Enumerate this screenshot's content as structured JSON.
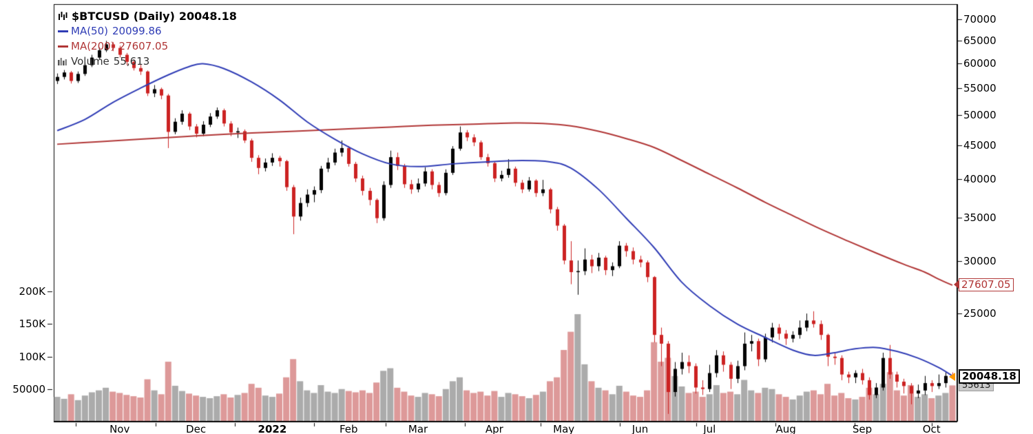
{
  "legend": {
    "symbol": "$BTCUSD",
    "timeframe": "(Daily)",
    "last": "20048.18",
    "ma50_label": "MA(50)",
    "ma50_value": "20099.86",
    "ma200_label": "MA(200)",
    "ma200_value": "27607.05",
    "volume_label": "Volume",
    "volume_value": "55,613"
  },
  "markers": {
    "ma200": "27607.05",
    "last_price": "20048.18",
    "last_volume": "55613"
  },
  "chart_data": {
    "type": "candlestick",
    "title": "$BTCUSD (Daily)",
    "symbol": "$BTCUSD",
    "timeframe": "Daily",
    "last_price": 20048.18,
    "colors": {
      "ma50": "#2f3cb5",
      "ma200": "#b03535",
      "candle_up": "#000000",
      "candle_down": "#cc2222",
      "volume_up": "#ababab",
      "volume_down": "#dd9999",
      "volume_marker_bg": "#cccccc",
      "last_arrow": "#ff9900",
      "axis": "#000000"
    },
    "price_axis": {
      "side": "right",
      "scale": "log",
      "ticks": [
        70000,
        65000,
        60000,
        55000,
        50000,
        45000,
        40000,
        35000,
        30000,
        25000
      ]
    },
    "volume_axis": {
      "side": "left",
      "ticks": [
        {
          "label": "200K",
          "value": 200000
        },
        {
          "label": "150K",
          "value": 150000
        },
        {
          "label": "100K",
          "value": 100000
        },
        {
          "label": "50000",
          "value": 50000
        }
      ]
    },
    "x_axis": {
      "labels": [
        {
          "label": "Nov",
          "i": 9
        },
        {
          "label": "Dec",
          "i": 20
        },
        {
          "label": "2022",
          "i": 31,
          "bold": true
        },
        {
          "label": "Feb",
          "i": 42
        },
        {
          "label": "Mar",
          "i": 52
        },
        {
          "label": "Apr",
          "i": 63
        },
        {
          "label": "May",
          "i": 73
        },
        {
          "label": "Jun",
          "i": 84
        },
        {
          "label": "Jul",
          "i": 94
        },
        {
          "label": "Aug",
          "i": 105
        },
        {
          "label": "Sep",
          "i": 116
        },
        {
          "label": "Oct",
          "i": 126
        }
      ],
      "boundaries": [
        3.2,
        14.7,
        26.1,
        37.5,
        47.8,
        59.2,
        70.2,
        81.6,
        92.6,
        104.0,
        115.4,
        126.5
      ]
    },
    "candles": [
      [
        56400,
        57900,
        55800,
        57200
      ],
      [
        57200,
        58600,
        56700,
        58100
      ],
      [
        58100,
        58400,
        55900,
        56400
      ],
      [
        56400,
        58300,
        56000,
        57800
      ],
      [
        57800,
        60100,
        57400,
        59600
      ],
      [
        59600,
        61800,
        59200,
        61200
      ],
      [
        61200,
        63400,
        60800,
        62800
      ],
      [
        62800,
        64900,
        62400,
        64100
      ],
      [
        64100,
        64600,
        62600,
        63300
      ],
      [
        63300,
        63800,
        61200,
        61800
      ],
      [
        61800,
        62200,
        59600,
        60300
      ],
      [
        60300,
        60800,
        58500,
        59000
      ],
      [
        59000,
        59700,
        57600,
        58300
      ],
      [
        58300,
        58500,
        53500,
        54000
      ],
      [
        54000,
        55600,
        53300,
        54800
      ],
      [
        54800,
        55100,
        52900,
        53600
      ],
      [
        53600,
        53900,
        44600,
        47200
      ],
      [
        47200,
        49500,
        46800,
        48900
      ],
      [
        48900,
        50900,
        48400,
        50300
      ],
      [
        50300,
        50600,
        47500,
        48100
      ],
      [
        48100,
        48500,
        46300,
        46900
      ],
      [
        46900,
        49000,
        46500,
        48400
      ],
      [
        48400,
        50400,
        48000,
        49800
      ],
      [
        49800,
        51400,
        49400,
        50900
      ],
      [
        50900,
        51200,
        48100,
        48600
      ],
      [
        48600,
        49000,
        46500,
        47100
      ],
      [
        47100,
        47900,
        46200,
        47300
      ],
      [
        47300,
        47600,
        45400,
        45800
      ],
      [
        45800,
        46100,
        42500,
        43100
      ],
      [
        43100,
        43500,
        40700,
        41600
      ],
      [
        41600,
        43000,
        41100,
        42400
      ],
      [
        42400,
        43800,
        41900,
        43100
      ],
      [
        43100,
        43400,
        41800,
        42600
      ],
      [
        42600,
        42800,
        38400,
        38900
      ],
      [
        38900,
        39200,
        33000,
        35100
      ],
      [
        35100,
        37500,
        34600,
        36800
      ],
      [
        36800,
        38600,
        36300,
        37900
      ],
      [
        37900,
        39000,
        36900,
        38500
      ],
      [
        38500,
        41900,
        38100,
        41500
      ],
      [
        41500,
        43100,
        41000,
        42400
      ],
      [
        42400,
        44500,
        42000,
        43900
      ],
      [
        43900,
        45800,
        43300,
        44600
      ],
      [
        44600,
        44900,
        41800,
        42200
      ],
      [
        42200,
        42500,
        39600,
        40100
      ],
      [
        40100,
        40500,
        37800,
        38400
      ],
      [
        38400,
        38800,
        36500,
        37200
      ],
      [
        37200,
        37400,
        34300,
        34900
      ],
      [
        34900,
        39700,
        34600,
        39200
      ],
      [
        39200,
        44200,
        38800,
        43200
      ],
      [
        43200,
        43900,
        41300,
        41900
      ],
      [
        41900,
        42200,
        38800,
        39300
      ],
      [
        39300,
        39900,
        38000,
        38600
      ],
      [
        38600,
        40100,
        38200,
        39400
      ],
      [
        39400,
        41700,
        39000,
        41100
      ],
      [
        41100,
        41400,
        38600,
        39200
      ],
      [
        39200,
        39600,
        37600,
        38100
      ],
      [
        38100,
        41400,
        37800,
        40900
      ],
      [
        40900,
        44900,
        40600,
        44500
      ],
      [
        44500,
        48100,
        44200,
        47100
      ],
      [
        47100,
        47500,
        45700,
        46300
      ],
      [
        46300,
        46800,
        44900,
        45500
      ],
      [
        45500,
        45800,
        42800,
        43200
      ],
      [
        43200,
        43700,
        41800,
        42300
      ],
      [
        42300,
        42600,
        39600,
        40100
      ],
      [
        40100,
        41200,
        39700,
        40600
      ],
      [
        40600,
        42900,
        40200,
        41500
      ],
      [
        41500,
        41800,
        39000,
        39500
      ],
      [
        39500,
        39900,
        38100,
        38600
      ],
      [
        38600,
        40300,
        38300,
        39800
      ],
      [
        39800,
        40000,
        37600,
        38100
      ],
      [
        38100,
        39900,
        37700,
        38600
      ],
      [
        38600,
        38800,
        35500,
        36000
      ],
      [
        36000,
        36300,
        33400,
        34000
      ],
      [
        34000,
        34200,
        29700,
        30100
      ],
      [
        30100,
        32200,
        27700,
        28900
      ],
      [
        28900,
        30100,
        26700,
        29000
      ],
      [
        29000,
        31400,
        28600,
        30200
      ],
      [
        30200,
        30700,
        28800,
        29500
      ],
      [
        29500,
        30900,
        29000,
        30400
      ],
      [
        30400,
        30600,
        28600,
        29100
      ],
      [
        29100,
        29900,
        28500,
        29500
      ],
      [
        29500,
        32200,
        29300,
        31700
      ],
      [
        31700,
        32000,
        30500,
        31100
      ],
      [
        31100,
        31500,
        29700,
        30200
      ],
      [
        30200,
        30600,
        29400,
        29900
      ],
      [
        29900,
        30100,
        27900,
        28400
      ],
      [
        28400,
        28500,
        22600,
        23200
      ],
      [
        23200,
        23800,
        20800,
        22500
      ],
      [
        22500,
        22700,
        17600,
        19000
      ],
      [
        19000,
        21100,
        18700,
        20600
      ],
      [
        20600,
        21800,
        20200,
        21100
      ],
      [
        21100,
        21600,
        20300,
        20800
      ],
      [
        20800,
        21000,
        18900,
        19300
      ],
      [
        19300,
        19800,
        18800,
        19200
      ],
      [
        19200,
        20900,
        19000,
        20300
      ],
      [
        20300,
        22000,
        20000,
        21600
      ],
      [
        21600,
        21900,
        20400,
        20900
      ],
      [
        20900,
        21100,
        19200,
        19900
      ],
      [
        19900,
        21200,
        19600,
        20800
      ],
      [
        20800,
        23400,
        20500,
        22500
      ],
      [
        22500,
        23200,
        21900,
        22700
      ],
      [
        22700,
        22900,
        20800,
        21300
      ],
      [
        21300,
        23300,
        21100,
        23000
      ],
      [
        23000,
        24200,
        22600,
        23800
      ],
      [
        23800,
        24100,
        22800,
        23300
      ],
      [
        23300,
        23600,
        22400,
        22900
      ],
      [
        22900,
        23500,
        22600,
        23200
      ],
      [
        23200,
        24400,
        22900,
        23800
      ],
      [
        23800,
        25000,
        23500,
        24400
      ],
      [
        24400,
        25200,
        23800,
        24100
      ],
      [
        24100,
        24400,
        22800,
        23200
      ],
      [
        23200,
        23300,
        20800,
        21500
      ],
      [
        21500,
        21800,
        20900,
        21400
      ],
      [
        21400,
        21600,
        19800,
        20200
      ],
      [
        20200,
        20400,
        19600,
        20000
      ],
      [
        20000,
        20500,
        19600,
        20300
      ],
      [
        20300,
        20600,
        19500,
        19800
      ],
      [
        19800,
        20000,
        18500,
        18800
      ],
      [
        18800,
        19600,
        18600,
        19300
      ],
      [
        19300,
        21800,
        19100,
        21400
      ],
      [
        21400,
        22400,
        19900,
        20200
      ],
      [
        20200,
        20400,
        19300,
        19700
      ],
      [
        19700,
        19900,
        18900,
        19400
      ],
      [
        19400,
        19600,
        18200,
        18900
      ],
      [
        18900,
        19500,
        18600,
        19100
      ],
      [
        19100,
        20100,
        18800,
        19600
      ],
      [
        19600,
        19800,
        19000,
        19400
      ],
      [
        19400,
        20200,
        19200,
        19600
      ],
      [
        19600,
        20400,
        19300,
        20100
      ],
      [
        20100,
        20350,
        19900,
        20048.18
      ]
    ],
    "volumes": [
      38000,
      35000,
      42000,
      33000,
      40000,
      45000,
      48000,
      52000,
      46000,
      44000,
      41000,
      39000,
      37000,
      65000,
      48000,
      42000,
      92000,
      55000,
      47000,
      43000,
      40000,
      38000,
      36000,
      39000,
      42000,
      37000,
      41000,
      44000,
      58000,
      52000,
      40000,
      38000,
      43000,
      68000,
      96000,
      62000,
      48000,
      44000,
      56000,
      46000,
      44000,
      50000,
      47000,
      45000,
      48000,
      44000,
      60000,
      78000,
      82000,
      52000,
      46000,
      40000,
      38000,
      44000,
      42000,
      39000,
      50000,
      62000,
      68000,
      48000,
      44000,
      46000,
      40000,
      47000,
      38000,
      44000,
      42000,
      39000,
      36000,
      41000,
      46000,
      62000,
      68000,
      110000,
      138000,
      165000,
      88000,
      62000,
      52000,
      48000,
      42000,
      55000,
      46000,
      40000,
      38000,
      48000,
      122000,
      92000,
      98000,
      70000,
      54000,
      44000,
      46000,
      38000,
      42000,
      56000,
      44000,
      46000,
      42000,
      64000,
      48000,
      44000,
      52000,
      50000,
      42000,
      38000,
      34000,
      40000,
      46000,
      48000,
      42000,
      58000,
      40000,
      44000,
      36000,
      34000,
      38000,
      52000,
      42000,
      58000,
      76000,
      48000,
      40000,
      56000,
      38000,
      42000,
      36000,
      40000,
      44000,
      55613
    ],
    "overlays": [
      {
        "name": "MA(50)",
        "value": 20099.86,
        "points": [
          [
            0,
            47400
          ],
          [
            4,
            49300
          ],
          [
            8,
            52300
          ],
          [
            12,
            55000
          ],
          [
            16,
            57600
          ],
          [
            19,
            59300
          ],
          [
            21,
            59900
          ],
          [
            24,
            58900
          ],
          [
            28,
            56200
          ],
          [
            32,
            52800
          ],
          [
            36,
            48900
          ],
          [
            40,
            46000
          ],
          [
            44,
            43700
          ],
          [
            48,
            42200
          ],
          [
            52,
            41800
          ],
          [
            57,
            42200
          ],
          [
            62,
            42500
          ],
          [
            67,
            42700
          ],
          [
            71,
            42500
          ],
          [
            74,
            41600
          ],
          [
            78,
            38600
          ],
          [
            82,
            34900
          ],
          [
            86,
            31500
          ],
          [
            90,
            27900
          ],
          [
            94,
            25700
          ],
          [
            98,
            24100
          ],
          [
            102,
            23000
          ],
          [
            106,
            22000
          ],
          [
            109,
            21600
          ],
          [
            112,
            21800
          ],
          [
            115,
            22100
          ],
          [
            118,
            22200
          ],
          [
            121,
            21900
          ],
          [
            124,
            21400
          ],
          [
            127,
            20700
          ],
          [
            129,
            20100
          ]
        ]
      },
      {
        "name": "MA(200)",
        "value": 27607.05,
        "points": [
          [
            0,
            45200
          ],
          [
            6,
            45600
          ],
          [
            12,
            46000
          ],
          [
            18,
            46400
          ],
          [
            24,
            46800
          ],
          [
            30,
            47100
          ],
          [
            36,
            47400
          ],
          [
            42,
            47700
          ],
          [
            48,
            48000
          ],
          [
            54,
            48300
          ],
          [
            60,
            48500
          ],
          [
            66,
            48700
          ],
          [
            70,
            48600
          ],
          [
            74,
            48200
          ],
          [
            78,
            47300
          ],
          [
            82,
            46100
          ],
          [
            86,
            44700
          ],
          [
            90,
            42700
          ],
          [
            94,
            40700
          ],
          [
            98,
            38800
          ],
          [
            102,
            36900
          ],
          [
            106,
            35200
          ],
          [
            110,
            33600
          ],
          [
            114,
            32200
          ],
          [
            118,
            30900
          ],
          [
            122,
            29700
          ],
          [
            125,
            28900
          ],
          [
            127,
            28200
          ],
          [
            129,
            27607
          ]
        ]
      }
    ],
    "volume_overlay": {
      "name": "Volume",
      "last": 55613
    }
  }
}
